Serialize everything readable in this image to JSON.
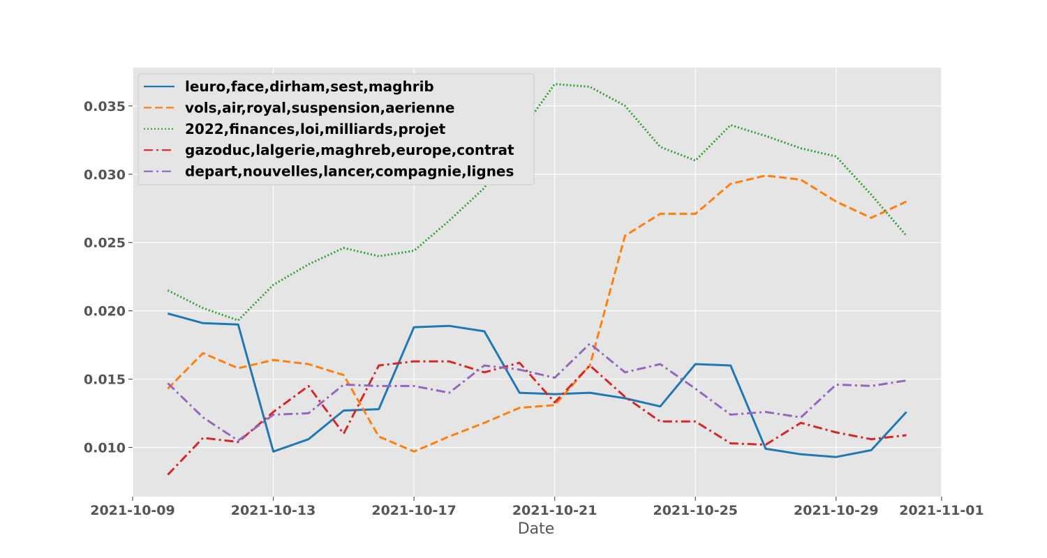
{
  "chart_data": {
    "type": "line",
    "xlabel": "Date",
    "ylabel": "",
    "xlim": [
      "2021-10-09",
      "2021-11-01"
    ],
    "ylim": [
      0.0064,
      0.0378
    ],
    "x_ticks": [
      "2021-10-09",
      "2021-10-13",
      "2021-10-17",
      "2021-10-21",
      "2021-10-25",
      "2021-10-29",
      "2021-11-01"
    ],
    "y_ticks": [
      "0.010",
      "0.015",
      "0.020",
      "0.025",
      "0.030",
      "0.035"
    ],
    "grid": true,
    "legend_position": "upper-left",
    "x": [
      "2021-10-10",
      "2021-10-11",
      "2021-10-12",
      "2021-10-13",
      "2021-10-14",
      "2021-10-15",
      "2021-10-16",
      "2021-10-17",
      "2021-10-18",
      "2021-10-19",
      "2021-10-20",
      "2021-10-21",
      "2021-10-22",
      "2021-10-23",
      "2021-10-24",
      "2021-10-25",
      "2021-10-26",
      "2021-10-27",
      "2021-10-28",
      "2021-10-29",
      "2021-10-30",
      "2021-10-31"
    ],
    "series": [
      {
        "name": "leuro,face,dirham,sest,maghrib",
        "color": "#1f77b4",
        "style": "solid",
        "values": [
          0.0198,
          0.0191,
          0.019,
          0.0097,
          0.0106,
          0.0127,
          0.0128,
          0.0188,
          0.0189,
          0.0185,
          0.014,
          0.0139,
          0.014,
          0.0136,
          0.013,
          0.0161,
          0.016,
          0.0099,
          0.0095,
          0.0093,
          0.0098,
          0.0126
        ]
      },
      {
        "name": "vols,air,royal,suspension,aerienne",
        "color": "#ff7f0e",
        "style": "dashed",
        "values": [
          0.0143,
          0.0169,
          0.0158,
          0.0164,
          0.0161,
          0.0153,
          0.0108,
          0.0097,
          0.0108,
          0.0118,
          0.0129,
          0.0131,
          0.016,
          0.0255,
          0.0271,
          0.0271,
          0.0293,
          0.0299,
          0.0296,
          0.028,
          0.0268,
          0.028
        ]
      },
      {
        "name": "2022,finances,loi,milliards,projet",
        "color": "#2ca02c",
        "style": "dotted",
        "values": [
          0.0215,
          0.0202,
          0.0193,
          0.0219,
          0.0234,
          0.0246,
          0.024,
          0.0244,
          0.0266,
          0.029,
          0.033,
          0.0366,
          0.0364,
          0.035,
          0.032,
          0.031,
          0.0336,
          0.0328,
          0.0319,
          0.0313,
          0.0285,
          0.0255
        ]
      },
      {
        "name": "gazoduc,lalgerie,maghreb,europe,contrat",
        "color": "#d62728",
        "style": "dashdot",
        "values": [
          0.008,
          0.0107,
          0.0104,
          0.0126,
          0.0145,
          0.011,
          0.016,
          0.0163,
          0.0163,
          0.0155,
          0.0162,
          0.0133,
          0.016,
          0.0137,
          0.0119,
          0.0119,
          0.0103,
          0.0102,
          0.0118,
          0.0111,
          0.0106,
          0.0109
        ]
      },
      {
        "name": "depart,nouvelles,lancer,compagnie,lignes",
        "color": "#9467bd",
        "style": "dashdot",
        "values": [
          0.0147,
          0.0122,
          0.0105,
          0.0124,
          0.0125,
          0.0146,
          0.0145,
          0.0145,
          0.014,
          0.016,
          0.0157,
          0.0151,
          0.0176,
          0.0155,
          0.0161,
          0.0143,
          0.0124,
          0.0126,
          0.0122,
          0.0146,
          0.0145,
          0.0149
        ]
      }
    ]
  }
}
